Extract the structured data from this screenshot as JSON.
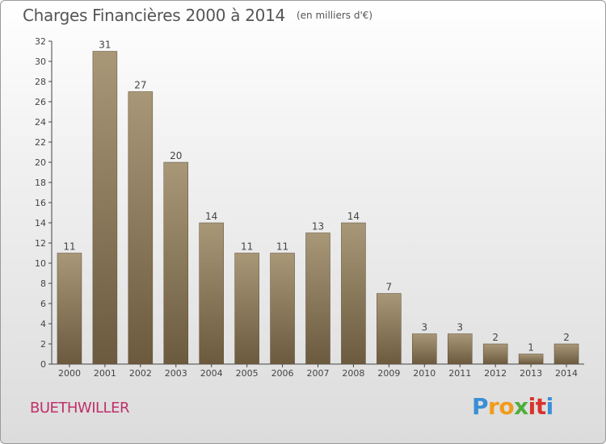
{
  "title": "Charges Financières 2000 à 2014",
  "unit_note": "(en milliers d'€)",
  "city": "BUETHWILLER",
  "logo": {
    "text": "Proxiti",
    "colors": [
      "#3a8fd6",
      "#f29a1a",
      "#4fae3a",
      "#d8332e",
      "#3a8fd6"
    ]
  },
  "colors": {
    "bar_top": "#a89878",
    "bar_bottom": "#6b5a3e",
    "axis": "#444444",
    "city": "#c0306a"
  },
  "chart_data": {
    "type": "bar",
    "title": "Charges Financières 2000 à 2014",
    "categories": [
      "2000",
      "2001",
      "2002",
      "2003",
      "2004",
      "2005",
      "2006",
      "2007",
      "2008",
      "2009",
      "2010",
      "2011",
      "2012",
      "2013",
      "2014"
    ],
    "values": [
      11,
      31,
      27,
      20,
      14,
      11,
      11,
      13,
      14,
      7,
      3,
      3,
      2,
      1,
      2
    ],
    "ylim": [
      0,
      32
    ],
    "yticks": [
      0,
      2,
      4,
      6,
      8,
      10,
      12,
      14,
      16,
      18,
      20,
      22,
      24,
      26,
      28,
      30,
      32
    ],
    "grid": false,
    "legend": "none",
    "xlabel": "",
    "ylabel": ""
  }
}
